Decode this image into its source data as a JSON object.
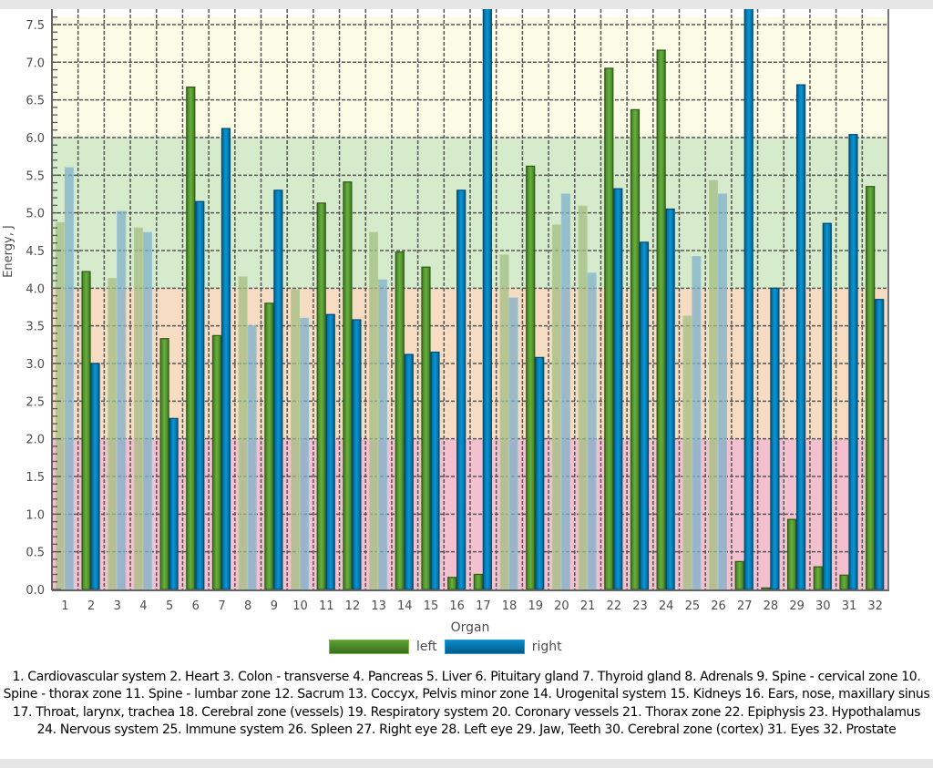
{
  "chart_data": {
    "type": "bar",
    "title": "",
    "xlabel": "Organ",
    "ylabel": "Energy, J",
    "ylim": [
      0,
      7.5
    ],
    "yticks": [
      "0.0",
      "0.5",
      "1.0",
      "1.5",
      "2.0",
      "2.5",
      "3.0",
      "3.5",
      "4.0",
      "4.5",
      "5.0",
      "5.5",
      "6.0",
      "6.5",
      "7.0",
      "7.5"
    ],
    "grid": true,
    "legend_position": "bottom-center",
    "background_bands": [
      {
        "from": 0,
        "to": 2,
        "color": "#f2c0cf"
      },
      {
        "from": 2,
        "to": 4,
        "color": "#f5dcc2"
      },
      {
        "from": 4,
        "to": 6,
        "color": "#d6eacc"
      },
      {
        "from": 6,
        "to": 7.6,
        "color": "#fcfbe6"
      }
    ],
    "categories": [
      "1",
      "2",
      "3",
      "4",
      "5",
      "6",
      "7",
      "8",
      "9",
      "10",
      "11",
      "12",
      "13",
      "14",
      "15",
      "16",
      "17",
      "18",
      "19",
      "20",
      "21",
      "22",
      "23",
      "24",
      "25",
      "26",
      "27",
      "28",
      "29",
      "30",
      "31",
      "32"
    ],
    "faded": [
      true,
      false,
      true,
      true,
      false,
      false,
      false,
      true,
      false,
      true,
      false,
      false,
      true,
      false,
      false,
      false,
      false,
      true,
      false,
      true,
      true,
      false,
      false,
      false,
      true,
      true,
      false,
      false,
      false,
      false,
      false,
      false
    ],
    "series": [
      {
        "name": "left",
        "color": "#5a9e34",
        "values": [
          4.87,
          4.22,
          4.13,
          4.8,
          3.33,
          6.67,
          3.37,
          4.15,
          3.8,
          3.98,
          5.13,
          5.41,
          4.74,
          4.48,
          4.28,
          0.16,
          0.2,
          4.44,
          5.62,
          4.84,
          5.09,
          6.92,
          6.37,
          7.16,
          3.63,
          5.43,
          0.37,
          0.02,
          0.93,
          0.3,
          0.19,
          5.35
        ]
      },
      {
        "name": "right",
        "color": "#0b82c0",
        "values": [
          5.6,
          3.0,
          5.02,
          4.74,
          2.27,
          5.15,
          6.12,
          3.5,
          5.3,
          3.6,
          3.65,
          3.58,
          4.11,
          3.12,
          3.15,
          5.3,
          7.8,
          3.87,
          3.08,
          5.25,
          4.2,
          5.32,
          4.61,
          5.05,
          4.42,
          5.25,
          7.8,
          4.0,
          6.7,
          4.86,
          6.04,
          3.85
        ]
      }
    ]
  },
  "legend": {
    "items": [
      {
        "label": "left"
      },
      {
        "label": "right"
      }
    ]
  },
  "caption": "1. Cardiovascular system 2. Heart 3. Colon - transverse 4. Pancreas 5. Liver 6. Pituitary gland 7. Thyroid gland 8. Adrenals 9. Spine - cervical zone 10. Spine - thorax zone 11. Spine - lumbar zone 12. Sacrum 13. Coccyx, Pelvis minor zone 14. Urogenital system 15. Kidneys 16. Ears, nose, maxillary sinus 17. Throat, larynx, trachea 18. Cerebral zone (vessels) 19. Respiratory system 20. Coronary vessels 21. Thorax zone 22. Epiphysis 23. Hypothalamus 24. Nervous system 25. Immune system 26. Spleen 27. Right eye 28. Left eye 29. Jaw, Teeth 30. Cerebral zone (cortex) 31. Eyes 32. Prostate"
}
